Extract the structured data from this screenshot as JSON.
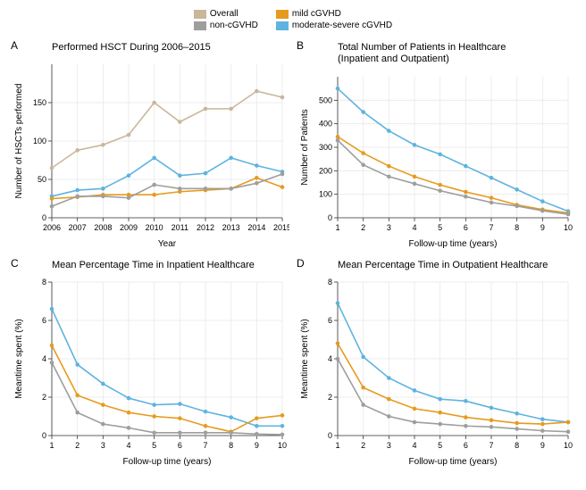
{
  "legend": {
    "overall": {
      "label": "Overall",
      "color": "#c9b79c"
    },
    "non": {
      "label": "non-cGVHD",
      "color": "#9e9e9e"
    },
    "mild": {
      "label": "mild cGVHD",
      "color": "#e69b1e"
    },
    "modsev": {
      "label": "moderate-severe cGVHD",
      "color": "#5fb3e0"
    }
  },
  "style": {
    "background": "#ffffff",
    "panel_bg": "#ffffff",
    "grid_color": "#e8e8e8",
    "axis_color": "#333333",
    "tick_color": "#333333",
    "title_fontsize": 11,
    "axis_label_fontsize": 10,
    "tick_fontsize": 9,
    "line_width": 1.6,
    "marker_size": 2.3
  },
  "panelA": {
    "letter": "A",
    "title": "Performed HSCT During 2006–2015",
    "xlabel": "Year",
    "ylabel": "Number of HSCTs performed",
    "x": [
      2006,
      2007,
      2008,
      2009,
      2010,
      2011,
      2012,
      2013,
      2014,
      2015
    ],
    "xticks": [
      "2006",
      "2007",
      "2008",
      "2009",
      "2010",
      "2011",
      "2012",
      "2013",
      "2014",
      "2015"
    ],
    "ylim": [
      0,
      200
    ],
    "yticks": [
      0,
      50,
      100,
      150
    ],
    "series": {
      "overall": [
        65,
        88,
        95,
        108,
        150,
        125,
        142,
        142,
        165,
        157
      ],
      "non": [
        15,
        28,
        28,
        26,
        43,
        38,
        38,
        38,
        45,
        57
      ],
      "mild": [
        25,
        27,
        30,
        30,
        30,
        34,
        36,
        38,
        52,
        40
      ],
      "modsev": [
        28,
        36,
        38,
        55,
        78,
        55,
        58,
        78,
        68,
        60
      ]
    }
  },
  "panelB": {
    "letter": "B",
    "title": "Total Number of Patients in Healthcare (Inpatient and Outpatient)",
    "xlabel": "Follow-up time (years)",
    "ylabel": "Number of Patients",
    "x": [
      1,
      2,
      3,
      4,
      5,
      6,
      7,
      8,
      9,
      10
    ],
    "xticks": [
      "1",
      "2",
      "3",
      "4",
      "5",
      "6",
      "7",
      "8",
      "9",
      "10"
    ],
    "ylim": [
      0,
      600
    ],
    "yticks": [
      0,
      100,
      200,
      300,
      400,
      500
    ],
    "series": {
      "non": [
        330,
        225,
        175,
        145,
        115,
        90,
        65,
        50,
        30,
        15
      ],
      "mild": [
        345,
        275,
        220,
        175,
        140,
        110,
        85,
        55,
        35,
        20
      ],
      "modsev": [
        550,
        450,
        370,
        310,
        270,
        220,
        170,
        120,
        70,
        28
      ]
    }
  },
  "panelC": {
    "letter": "C",
    "title": "Mean Percentage Time in Inpatient Healthcare",
    "xlabel": "Follow-up time (years)",
    "ylabel": "Meantime spent (%)",
    "x": [
      1,
      2,
      3,
      4,
      5,
      6,
      7,
      8,
      9,
      10
    ],
    "xticks": [
      "1",
      "2",
      "3",
      "4",
      "5",
      "6",
      "7",
      "8",
      "9",
      "10"
    ],
    "ylim": [
      0,
      8
    ],
    "yticks": [
      0,
      2,
      4,
      6,
      8
    ],
    "series": {
      "non": [
        3.8,
        1.2,
        0.6,
        0.4,
        0.15,
        0.15,
        0.15,
        0.15,
        0.08,
        0.05
      ],
      "mild": [
        4.7,
        2.1,
        1.6,
        1.2,
        1.0,
        0.9,
        0.5,
        0.2,
        0.9,
        1.05
      ],
      "modsev": [
        6.6,
        3.7,
        2.7,
        1.95,
        1.6,
        1.65,
        1.25,
        0.95,
        0.5,
        0.5
      ]
    }
  },
  "panelD": {
    "letter": "D",
    "title": "Mean Percentage Time in Outpatient Healthcare",
    "xlabel": "Follow-up time (years)",
    "ylabel": "Meantime spent (%)",
    "x": [
      1,
      2,
      3,
      4,
      5,
      6,
      7,
      8,
      9,
      10
    ],
    "xticks": [
      "1",
      "2",
      "3",
      "4",
      "5",
      "6",
      "7",
      "8",
      "9",
      "10"
    ],
    "ylim": [
      0,
      8
    ],
    "yticks": [
      0,
      2,
      4,
      6,
      8
    ],
    "series": {
      "non": [
        4.0,
        1.6,
        1.0,
        0.7,
        0.6,
        0.5,
        0.45,
        0.35,
        0.25,
        0.2
      ],
      "mild": [
        4.8,
        2.5,
        1.9,
        1.4,
        1.2,
        0.95,
        0.8,
        0.65,
        0.6,
        0.7
      ],
      "modsev": [
        6.9,
        4.1,
        3.0,
        2.35,
        1.9,
        1.8,
        1.45,
        1.15,
        0.85,
        0.7
      ]
    }
  }
}
